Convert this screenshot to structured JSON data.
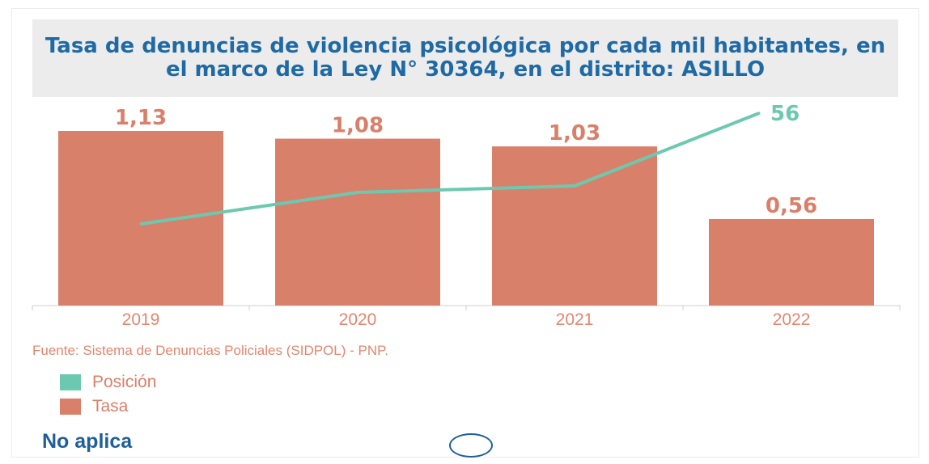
{
  "title": "Tasa de denuncias de violencia psicológica por cada mil habitantes, en el marco de la Ley N° 30364, en el distrito: ASILLO",
  "source": "Fuente: Sistema de Denuncias Policiales (SIDPOL) - PNP.",
  "legend": [
    {
      "label": "Posición",
      "color": "#6cc9b0"
    },
    {
      "label": "Tasa",
      "color": "#d9806a"
    }
  ],
  "status_text": "No aplica",
  "chart_data": {
    "type": "bar",
    "categories": [
      "2019",
      "2020",
      "2021",
      "2022"
    ],
    "series": [
      {
        "name": "Tasa",
        "type": "bar",
        "values": [
          1.13,
          1.08,
          1.03,
          0.56
        ],
        "labels": [
          "1,13",
          "1,08",
          "1,03",
          "0,56"
        ],
        "color": "#d9806a"
      },
      {
        "name": "Posición",
        "type": "line",
        "values": [
          null,
          null,
          null,
          56
        ],
        "labels": [
          "",
          "",
          "",
          "56"
        ],
        "color": "#6cc9b0"
      }
    ],
    "legend_placement": "bottom-left",
    "grid": false
  }
}
